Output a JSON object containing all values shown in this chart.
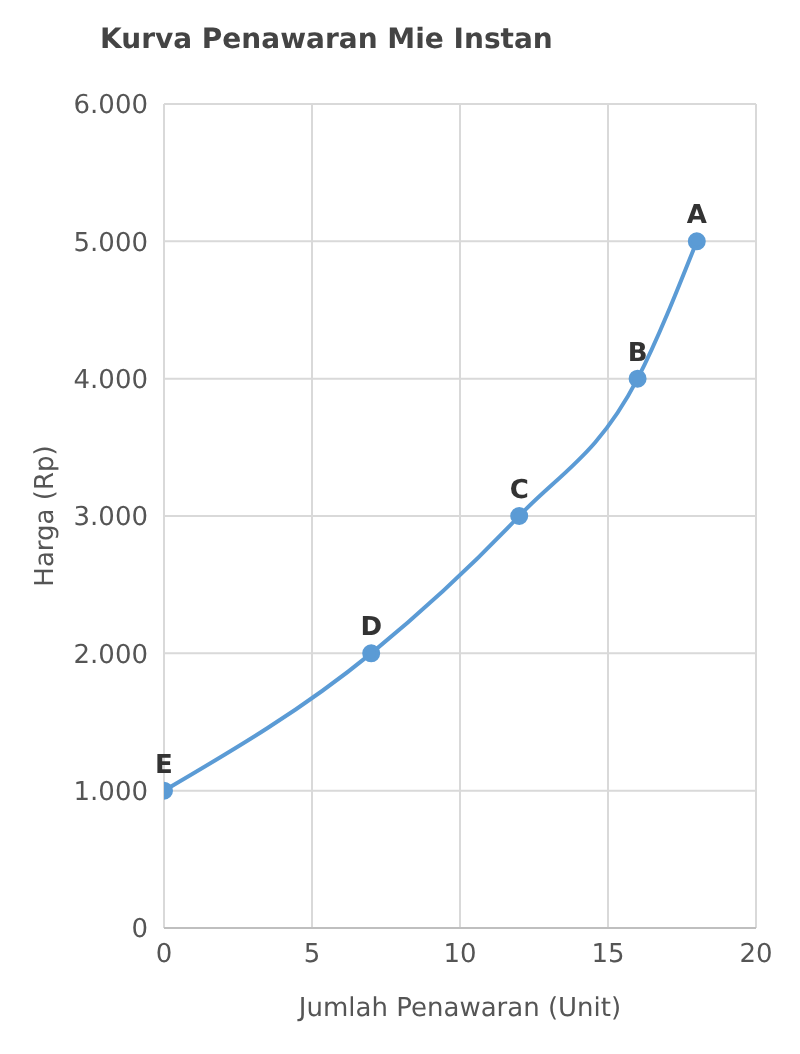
{
  "chart_data": {
    "type": "line",
    "title": "Kurva Penawaran Mie Instan",
    "xlabel": "Jumlah Penawaran (Unit)",
    "ylabel": "Harga (Rp)",
    "x": [
      0,
      7,
      12,
      16,
      18
    ],
    "series": [
      {
        "color": "#5b9bd5",
        "values": [
          1000,
          2000,
          3000,
          4000,
          5000
        ]
      }
    ],
    "xlim": [
      0,
      20
    ],
    "xticks": [
      0,
      5,
      10,
      15,
      20
    ],
    "ylim": [
      0,
      6000
    ],
    "yticks": [
      {
        "value": 0,
        "label": "0"
      },
      {
        "value": 1000,
        "label": "1.000"
      },
      {
        "value": 2000,
        "label": "2.000"
      },
      {
        "value": 3000,
        "label": "3.000"
      },
      {
        "value": 4000,
        "label": "4.000"
      },
      {
        "value": 5000,
        "label": "5.000"
      },
      {
        "value": 6000,
        "label": "6.000"
      }
    ],
    "grid": true,
    "marker": "circle",
    "line_style": "solid",
    "annotations": [
      {
        "text": "A",
        "x": 18,
        "y": 5000
      },
      {
        "text": "B",
        "x": 16,
        "y": 4000
      },
      {
        "text": "C",
        "x": 12,
        "y": 3000
      },
      {
        "text": "D",
        "x": 7,
        "y": 2000
      },
      {
        "text": "E",
        "x": 0,
        "y": 1000
      }
    ]
  }
}
